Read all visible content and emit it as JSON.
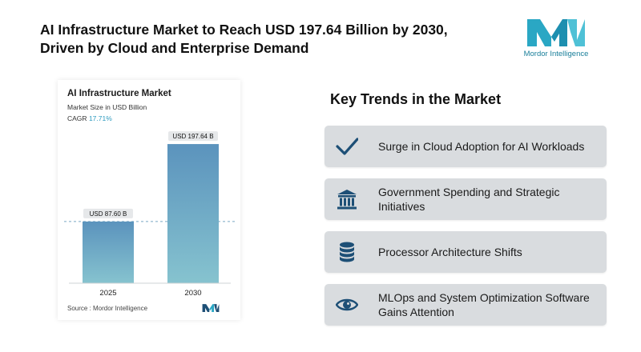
{
  "headline": {
    "line1": "AI Infrastructure Market to Reach USD 197.64 Billion by 2030,",
    "line2": "Driven by Cloud and Enterprise Demand"
  },
  "logo": {
    "text": "Mordor Intelligence"
  },
  "chart_data": {
    "type": "bar",
    "title": "AI Infrastructure Market",
    "subtitle": "Market Size in USD Billion",
    "cagr_label": "CAGR",
    "cagr_value": "17.71%",
    "categories": [
      "2025",
      "2030"
    ],
    "values": [
      87.6,
      197.64
    ],
    "data_labels": [
      "USD 87.60 B",
      "USD 197.64 B"
    ],
    "ylim": [
      0,
      200
    ],
    "reference_line": 87.6,
    "grid": false,
    "source": "Source : Mordor Intelligence",
    "colors": {
      "bar_top": "#5b93bd",
      "bar_bottom": "#86c3cf",
      "label_bg": "#e6e8ea"
    }
  },
  "trends": {
    "title": "Key Trends in the Market",
    "items": [
      {
        "icon": "checkmark-icon",
        "label": "Surge in Cloud Adoption for AI Workloads"
      },
      {
        "icon": "government-building-icon",
        "label": "Government Spending and Strategic Initiatives"
      },
      {
        "icon": "database-icon",
        "label": "Processor Architecture Shifts"
      },
      {
        "icon": "eye-icon",
        "label": "MLOps and System Optimization Software Gains Attention"
      }
    ]
  },
  "colors": {
    "accent": "#1d4f76",
    "card_bg": "#d9dcdf",
    "brand": "#2aa7c4"
  }
}
